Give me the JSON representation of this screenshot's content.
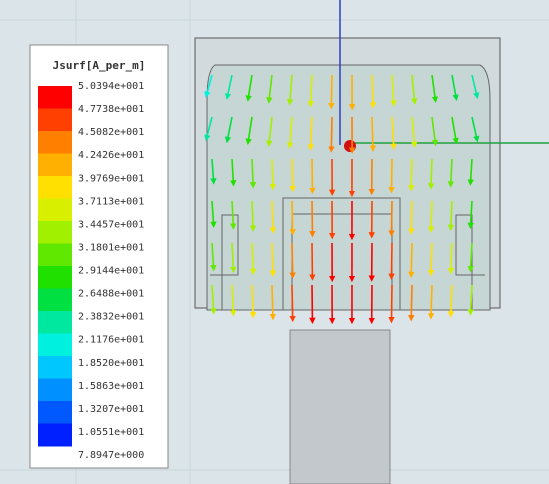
{
  "legend": {
    "title": "Jsurf[A_per_m]",
    "labels": [
      "5.0394e+001",
      "4.7738e+001",
      "4.5082e+001",
      "4.2426e+001",
      "3.9769e+001",
      "3.7113e+001",
      "3.4457e+001",
      "3.1801e+001",
      "2.9144e+001",
      "2.6488e+001",
      "2.3832e+001",
      "2.1176e+001",
      "1.8520e+001",
      "1.5863e+001",
      "1.3207e+001",
      "1.0551e+001",
      "7.8947e+000"
    ],
    "colors": [
      "#ff0000",
      "#ff4000",
      "#ff8000",
      "#ffb000",
      "#ffe000",
      "#d8f000",
      "#a0f000",
      "#60e800",
      "#20e000",
      "#00e040",
      "#00e8a0",
      "#00f0e0",
      "#00c8ff",
      "#0090ff",
      "#0058ff",
      "#0020ff"
    ]
  }
}
